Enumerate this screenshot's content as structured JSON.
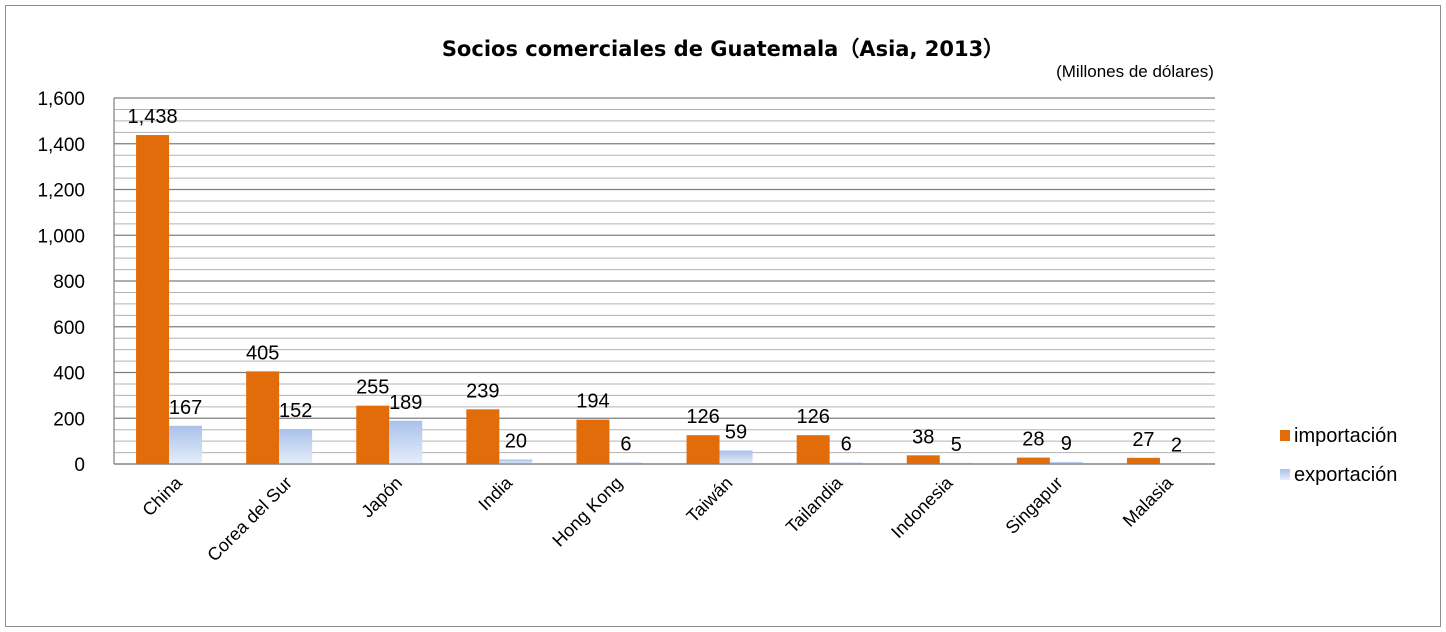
{
  "chart_data": {
    "type": "bar",
    "title": "Socios comerciales de Guatemala（Asia, 2013）",
    "unit_note": "(Millones de dólares)",
    "categories": [
      "China",
      "Corea del Sur",
      "Japón",
      "India",
      "Hong Kong",
      "Taiwán",
      "Tailandia",
      "Indonesia",
      "Singapur",
      "Malasia"
    ],
    "series": [
      {
        "name": "importación",
        "values": [
          1438,
          405,
          255,
          239,
          194,
          126,
          126,
          38,
          28,
          27
        ],
        "labels": [
          "1,438",
          "405",
          "255",
          "239",
          "194",
          "126",
          "126",
          "38",
          "28",
          "27"
        ],
        "color": "#e36c0a"
      },
      {
        "name": "exportación",
        "values": [
          167,
          152,
          189,
          20,
          6,
          59,
          6,
          5,
          9,
          2
        ],
        "labels": [
          "167",
          "152",
          "189",
          "20",
          "6",
          "59",
          "6",
          "5",
          "9",
          "2"
        ],
        "color": "#b9cdee"
      }
    ],
    "ylim": [
      0,
      1600
    ],
    "yticks": [
      0,
      200,
      400,
      600,
      800,
      1000,
      1200,
      1400,
      1600
    ],
    "ytick_labels": [
      "0",
      "200",
      "400",
      "600",
      "800",
      "1,000",
      "1,200",
      "1,400",
      "1,600"
    ],
    "grid": true,
    "legend_position": "right"
  }
}
